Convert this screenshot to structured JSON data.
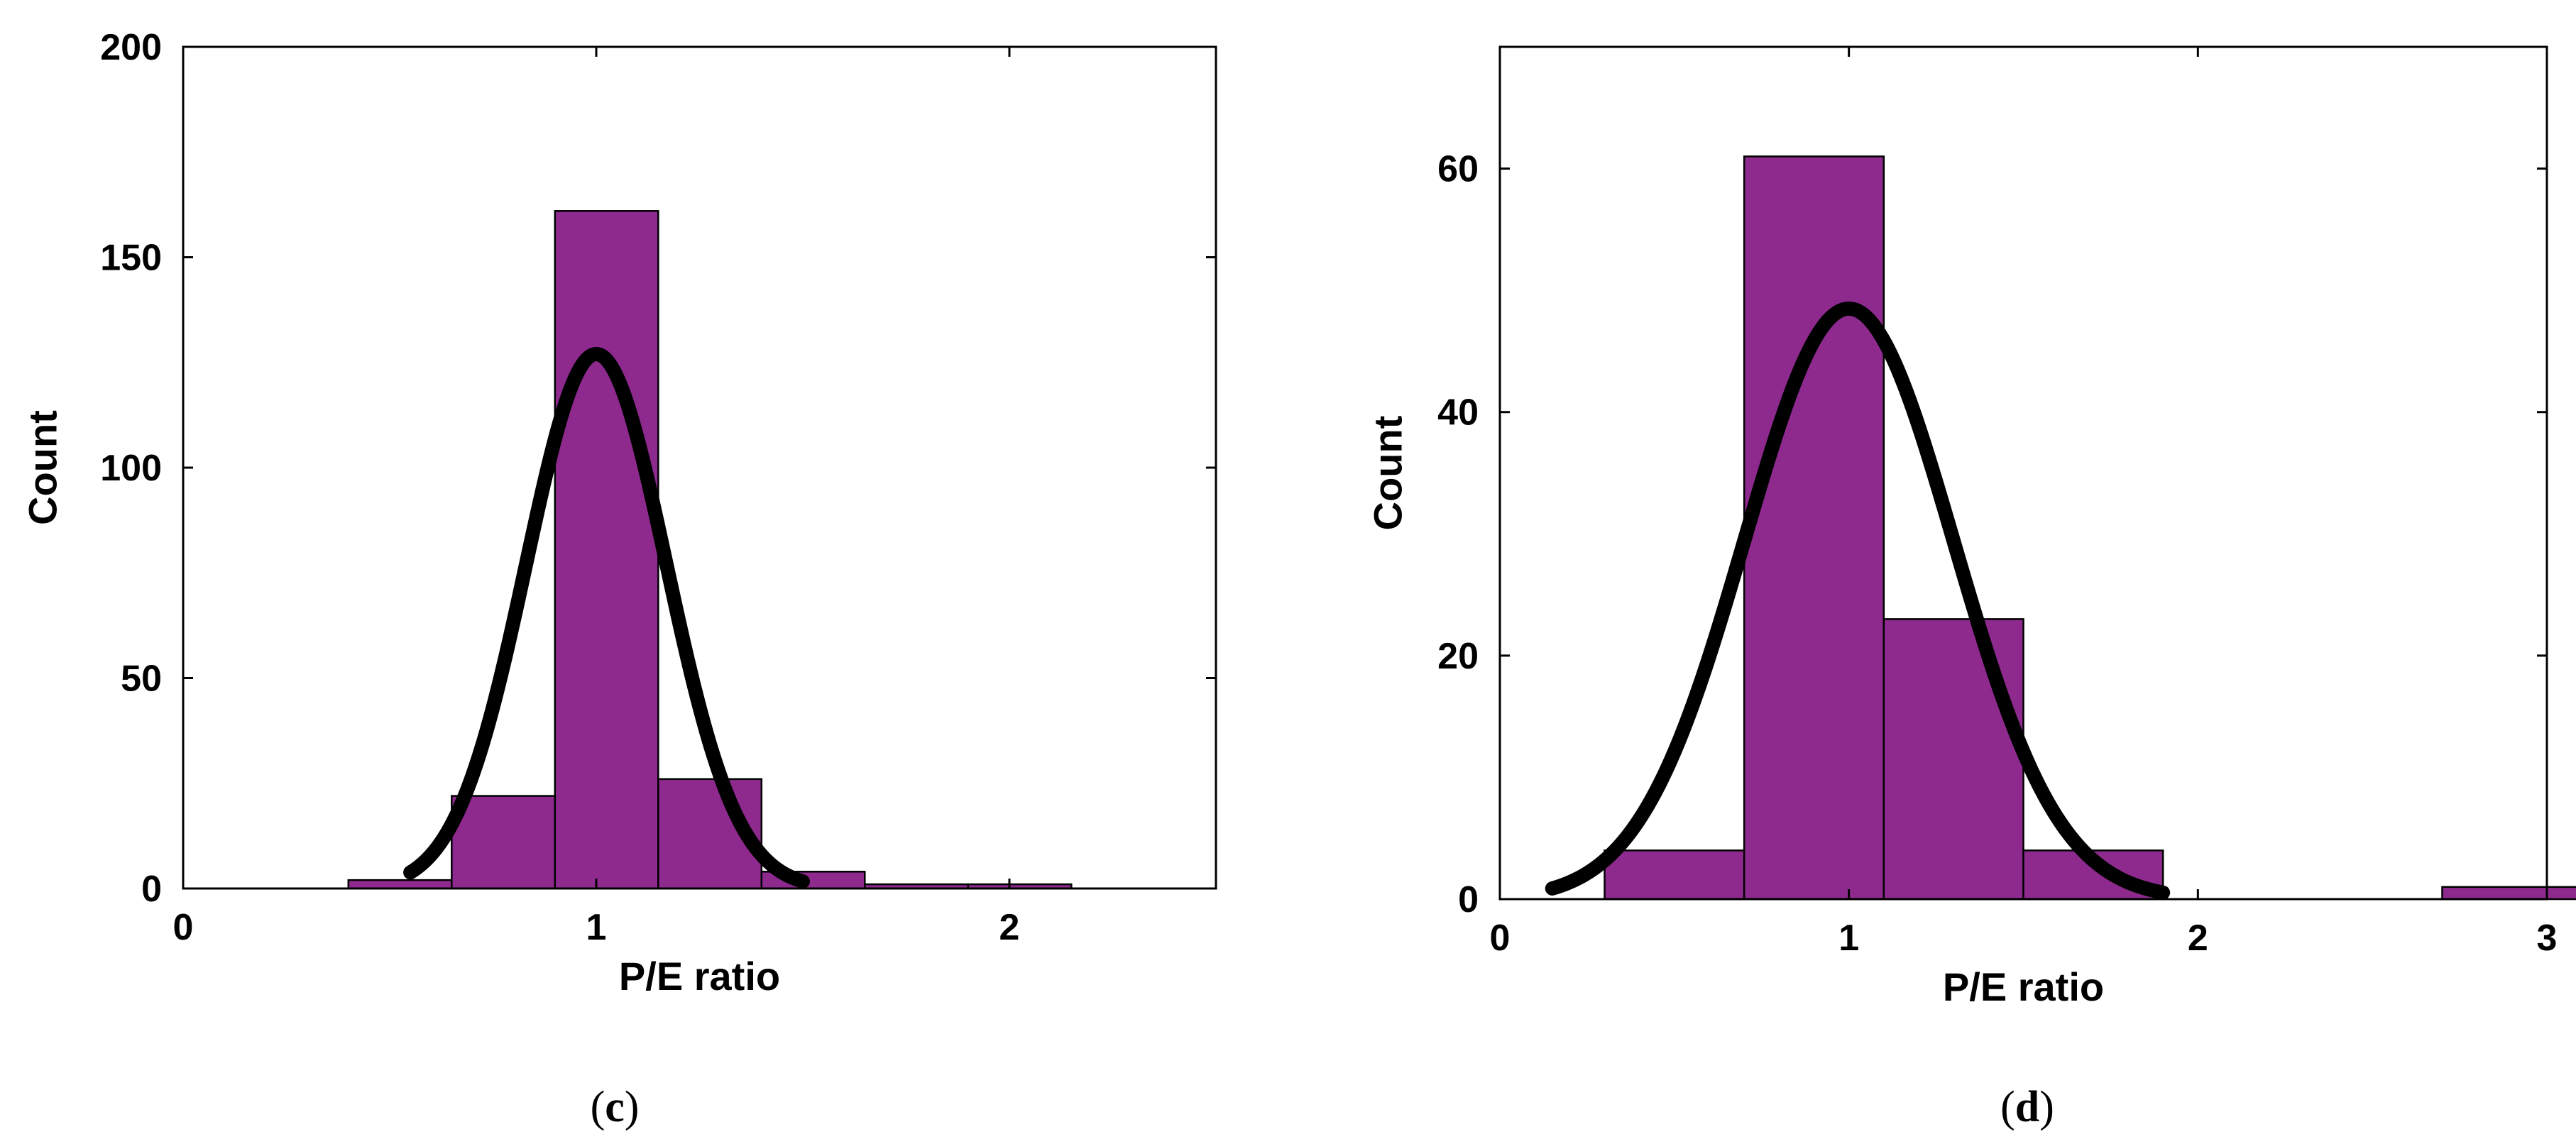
{
  "colors": {
    "bar": "#8e2a8e",
    "fit": "#000000",
    "axis": "#000000"
  },
  "chart_data": [
    {
      "type": "bar",
      "panel_label": "c",
      "xlabel": "P/E ratio",
      "ylabel": "Count",
      "xlim": [
        0,
        2.5
      ],
      "ylim": [
        0,
        200
      ],
      "xticks": [
        0,
        1,
        2
      ],
      "yticks": [
        0,
        50,
        100,
        150,
        200
      ],
      "bin_edges": [
        0.4,
        0.65,
        0.9,
        1.15,
        1.4,
        1.65,
        1.9,
        2.15
      ],
      "values": [
        2,
        22,
        161,
        26,
        4,
        1,
        1
      ],
      "fit": {
        "type": "normal",
        "mean": 1.0,
        "sigma": 0.17,
        "peak": 127,
        "x_range": [
          0.55,
          1.5
        ]
      }
    },
    {
      "type": "bar",
      "panel_label": "d",
      "xlabel": "P/E ratio",
      "ylabel": "Count",
      "xlim": [
        0,
        3
      ],
      "ylim": [
        0,
        70
      ],
      "xticks": [
        0,
        1,
        2,
        3
      ],
      "yticks": [
        0,
        20,
        40,
        60
      ],
      "bin_edges": [
        0.3,
        0.7,
        1.1,
        1.5,
        1.9,
        2.3,
        2.7,
        3.1
      ],
      "values": [
        4,
        61,
        23,
        4,
        0,
        0,
        1
      ],
      "fit": {
        "type": "normal",
        "mean": 1.0,
        "sigma": 0.3,
        "peak": 48.5,
        "x_range": [
          0.15,
          1.9
        ]
      }
    }
  ]
}
